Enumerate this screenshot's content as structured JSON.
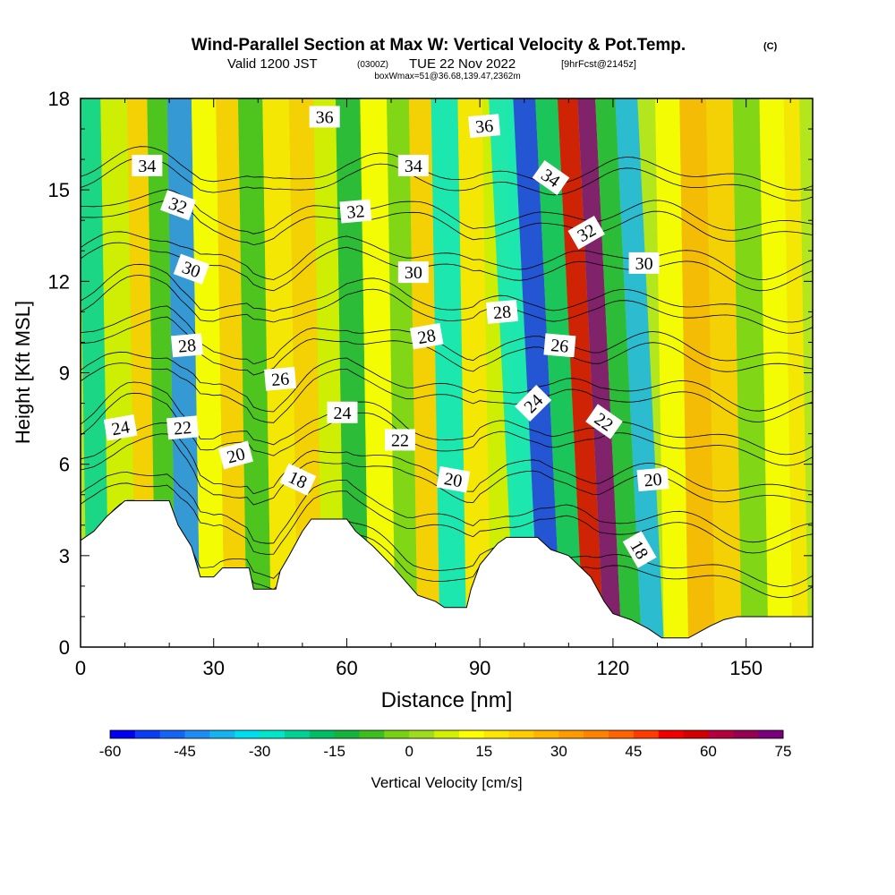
{
  "title": {
    "main": "Wind-Parallel Section at Max W: Vertical Velocity & Pot.Temp.",
    "copyright": "(C)",
    "valid_prefix": "Valid 1200 JST",
    "utc": "(0300Z)",
    "date": "TUE 22 Nov 2022",
    "forecast": "[9hrFcst@2145z]",
    "box": "boxWmax=51@36.68,139.47,2362m"
  },
  "chart_data": {
    "type": "heatmap",
    "xlabel": "Distance [nm]",
    "ylabel": "Height [Kft MSL]",
    "xlim": [
      0,
      165
    ],
    "ylim": [
      0,
      18
    ],
    "x_ticks": [
      0,
      30,
      60,
      90,
      120,
      150
    ],
    "y_ticks": [
      0,
      3,
      6,
      9,
      12,
      15,
      18
    ],
    "colorbar": {
      "label": "Vertical Velocity [cm/s]",
      "range": [
        -60,
        75
      ],
      "step": 5,
      "tick_labels": [
        "-60",
        "-45",
        "-30",
        "-15",
        "0",
        "15",
        "30",
        "45",
        "60",
        "75"
      ],
      "colors": [
        "#0000f0",
        "#0a3cf5",
        "#1464f5",
        "#1e8cf5",
        "#14b4f0",
        "#00dcf0",
        "#00e6c8",
        "#00d296",
        "#00be64",
        "#14b43c",
        "#3cbe1e",
        "#78d214",
        "#a0dc1e",
        "#d2f000",
        "#ffff00",
        "#ffe600",
        "#ffcd00",
        "#ffb400",
        "#ff9b00",
        "#ff8200",
        "#ff6400",
        "#ff3c00",
        "#f00000",
        "#d20000",
        "#b4003c",
        "#960050",
        "#780078"
      ]
    },
    "velocity_bands": [
      {
        "x": 3,
        "w": -25
      },
      {
        "x": 10,
        "w": 5
      },
      {
        "x": 15,
        "w": 20
      },
      {
        "x": 19,
        "w": -10
      },
      {
        "x": 24,
        "w": -45
      },
      {
        "x": 30,
        "w": 10
      },
      {
        "x": 35,
        "w": 20
      },
      {
        "x": 40,
        "w": -10
      },
      {
        "x": 46,
        "w": 15
      },
      {
        "x": 52,
        "w": 20
      },
      {
        "x": 57,
        "w": 5
      },
      {
        "x": 62,
        "w": -15
      },
      {
        "x": 68,
        "w": 10
      },
      {
        "x": 74,
        "w": -5
      },
      {
        "x": 78,
        "w": 20
      },
      {
        "x": 84,
        "w": -30
      },
      {
        "x": 90,
        "w": 15
      },
      {
        "x": 95,
        "w": 5
      },
      {
        "x": 101,
        "w": -30
      },
      {
        "x": 106,
        "w": -55
      },
      {
        "x": 111,
        "w": -20
      },
      {
        "x": 116,
        "w": 55
      },
      {
        "x": 120,
        "w": 70
      },
      {
        "x": 124,
        "w": -15
      },
      {
        "x": 129,
        "w": -40
      },
      {
        "x": 134,
        "w": 10
      },
      {
        "x": 140,
        "w": 25
      },
      {
        "x": 146,
        "w": 20
      },
      {
        "x": 152,
        "w": -5
      },
      {
        "x": 158,
        "w": 10
      },
      {
        "x": 163,
        "w": 15
      }
    ],
    "theta_contours": [
      18,
      20,
      22,
      24,
      26,
      28,
      30,
      32,
      34,
      36
    ],
    "contour_labels": [
      {
        "text": "34",
        "x": 15,
        "y": 15.8,
        "angle": 0
      },
      {
        "text": "32",
        "x": 22,
        "y": 14.5,
        "angle": 20
      },
      {
        "text": "30",
        "x": 25,
        "y": 12.4,
        "angle": 20
      },
      {
        "text": "28",
        "x": 24,
        "y": 9.9,
        "angle": -5
      },
      {
        "text": "24",
        "x": 9,
        "y": 7.2,
        "angle": -10
      },
      {
        "text": "22",
        "x": 23,
        "y": 7.2,
        "angle": -5
      },
      {
        "text": "20",
        "x": 35,
        "y": 6.3,
        "angle": -15
      },
      {
        "text": "18",
        "x": 49,
        "y": 5.5,
        "angle": 25
      },
      {
        "text": "26",
        "x": 45,
        "y": 8.8,
        "angle": -5
      },
      {
        "text": "24",
        "x": 59,
        "y": 7.7,
        "angle": 0
      },
      {
        "text": "22",
        "x": 72,
        "y": 6.8,
        "angle": 0
      },
      {
        "text": "20",
        "x": 84,
        "y": 5.5,
        "angle": 10
      },
      {
        "text": "36",
        "x": 55,
        "y": 17.4,
        "angle": 0
      },
      {
        "text": "34",
        "x": 75,
        "y": 15.8,
        "angle": 0
      },
      {
        "text": "32",
        "x": 62,
        "y": 14.3,
        "angle": -5
      },
      {
        "text": "30",
        "x": 75,
        "y": 12.3,
        "angle": 0
      },
      {
        "text": "28",
        "x": 78,
        "y": 10.2,
        "angle": -10
      },
      {
        "text": "36",
        "x": 91,
        "y": 17.1,
        "angle": -5
      },
      {
        "text": "28",
        "x": 95,
        "y": 11.0,
        "angle": -5
      },
      {
        "text": "34",
        "x": 106,
        "y": 15.4,
        "angle": 35
      },
      {
        "text": "32",
        "x": 114,
        "y": 13.6,
        "angle": -30
      },
      {
        "text": "30",
        "x": 127,
        "y": 12.6,
        "angle": 0
      },
      {
        "text": "26",
        "x": 108,
        "y": 9.9,
        "angle": 5
      },
      {
        "text": "24",
        "x": 102,
        "y": 8.0,
        "angle": -45
      },
      {
        "text": "22",
        "x": 118,
        "y": 7.4,
        "angle": 35
      },
      {
        "text": "20",
        "x": 129,
        "y": 5.5,
        "angle": -5
      },
      {
        "text": "18",
        "x": 126,
        "y": 3.2,
        "angle": 60
      }
    ],
    "terrain": [
      {
        "x": 0,
        "h": 3.5
      },
      {
        "x": 3,
        "h": 3.8
      },
      {
        "x": 6,
        "h": 4.3
      },
      {
        "x": 10,
        "h": 4.8
      },
      {
        "x": 20,
        "h": 4.8
      },
      {
        "x": 22,
        "h": 4.0
      },
      {
        "x": 25,
        "h": 3.3
      },
      {
        "x": 27,
        "h": 2.3
      },
      {
        "x": 30,
        "h": 2.3
      },
      {
        "x": 32,
        "h": 2.6
      },
      {
        "x": 38,
        "h": 2.6
      },
      {
        "x": 39,
        "h": 1.9
      },
      {
        "x": 44,
        "h": 1.9
      },
      {
        "x": 45,
        "h": 2.5
      },
      {
        "x": 47,
        "h": 3.0
      },
      {
        "x": 50,
        "h": 3.8
      },
      {
        "x": 52,
        "h": 4.2
      },
      {
        "x": 60,
        "h": 4.2
      },
      {
        "x": 62,
        "h": 3.8
      },
      {
        "x": 66,
        "h": 3.3
      },
      {
        "x": 70,
        "h": 2.7
      },
      {
        "x": 73,
        "h": 2.2
      },
      {
        "x": 76,
        "h": 1.7
      },
      {
        "x": 80,
        "h": 1.5
      },
      {
        "x": 82,
        "h": 1.3
      },
      {
        "x": 87,
        "h": 1.3
      },
      {
        "x": 88,
        "h": 1.9
      },
      {
        "x": 90,
        "h": 2.7
      },
      {
        "x": 94,
        "h": 3.4
      },
      {
        "x": 96,
        "h": 3.6
      },
      {
        "x": 103,
        "h": 3.6
      },
      {
        "x": 106,
        "h": 3.2
      },
      {
        "x": 110,
        "h": 3.0
      },
      {
        "x": 115,
        "h": 2.3
      },
      {
        "x": 118,
        "h": 1.5
      },
      {
        "x": 120,
        "h": 1.1
      },
      {
        "x": 124,
        "h": 0.9
      },
      {
        "x": 128,
        "h": 0.6
      },
      {
        "x": 131,
        "h": 0.3
      },
      {
        "x": 137,
        "h": 0.3
      },
      {
        "x": 142,
        "h": 0.7
      },
      {
        "x": 145,
        "h": 0.9
      },
      {
        "x": 148,
        "h": 1.0
      },
      {
        "x": 165,
        "h": 1.0
      }
    ]
  }
}
